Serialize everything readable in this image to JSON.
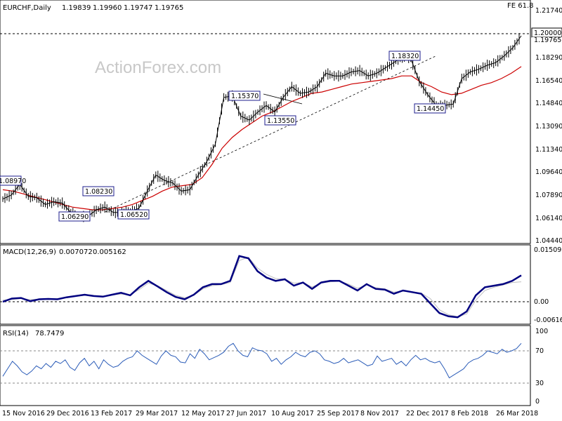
{
  "chart_data": [
    {
      "type": "line",
      "panel": "price",
      "header": {
        "symbol": "EURCHF,Daily",
        "ohlc": [
          "1.19839",
          "1.19960",
          "1.19747",
          "1.19765"
        ],
        "fe_label": "FE 61.8",
        "watermark": "ActionForex.com"
      },
      "x_tick_labels": [
        "15 Nov 2016",
        "29 Dec 2016",
        "13 Feb 2017",
        "29 Mar 2017",
        "12 May 2017",
        "27 Jun 2017",
        "10 Aug 2017",
        "25 Sep 2017",
        "8 Nov 2017",
        "22 Dec 2017",
        "8 Feb 2018",
        "26 Mar 2018"
      ],
      "y_tick_labels": [
        "1.21740",
        "1.18290",
        "1.16540",
        "1.14840",
        "1.13090",
        "1.11340",
        "1.09640",
        "1.07890",
        "1.06140",
        "1.04440"
      ],
      "ylim": [
        1.0444,
        1.2174
      ],
      "price_label": "1.20000",
      "last_price_label": "1.19765",
      "annotations": [
        "1.08970",
        "1.06290",
        "1.08230",
        "1.06520",
        "1.15370",
        "1.13550",
        "1.18320",
        "1.14450"
      ],
      "price_series": [
        1.076,
        1.079,
        1.087,
        1.078,
        1.077,
        1.072,
        1.074,
        1.073,
        1.066,
        1.063,
        1.063,
        1.068,
        1.07,
        1.066,
        1.066,
        1.067,
        1.069,
        1.082,
        1.094,
        1.09,
        1.088,
        1.082,
        1.083,
        1.094,
        1.104,
        1.117,
        1.152,
        1.153,
        1.138,
        1.135,
        1.141,
        1.146,
        1.141,
        1.152,
        1.16,
        1.155,
        1.156,
        1.16,
        1.17,
        1.168,
        1.168,
        1.171,
        1.172,
        1.168,
        1.17,
        1.174,
        1.178,
        1.182,
        1.181,
        1.164,
        1.154,
        1.146,
        1.146,
        1.147,
        1.166,
        1.171,
        1.173,
        1.176,
        1.178,
        1.183,
        1.189,
        1.198
      ],
      "ma_series": [
        1.083,
        1.082,
        1.08,
        1.078,
        1.076,
        1.074,
        1.072,
        1.07,
        1.069,
        1.068,
        1.068,
        1.069,
        1.07,
        1.072,
        1.075,
        1.078,
        1.082,
        1.085,
        1.086,
        1.087,
        1.092,
        1.102,
        1.114,
        1.122,
        1.128,
        1.133,
        1.138,
        1.141,
        1.145,
        1.149,
        1.152,
        1.155,
        1.156,
        1.158,
        1.16,
        1.162,
        1.163,
        1.164,
        1.165,
        1.166,
        1.168,
        1.168,
        1.163,
        1.16,
        1.156,
        1.154,
        1.155,
        1.158,
        1.161,
        1.163,
        1.166,
        1.17,
        1.175
      ]
    },
    {
      "type": "line",
      "panel": "macd",
      "header": {
        "title": "MACD(12,26,9)",
        "values": [
          "0.007072",
          "0.005162"
        ]
      },
      "y_tick_labels": [
        "0.015092",
        "0.00",
        "-0.006163"
      ],
      "ylim": [
        -0.0075,
        0.016
      ],
      "macd_series": [
        -0.001,
        0.0,
        0.0002,
        -0.0008,
        -0.0002,
        -0.0001,
        -0.0002,
        0.0004,
        0.0008,
        0.0012,
        0.0008,
        0.0006,
        0.0012,
        0.0018,
        0.001,
        0.0035,
        0.0055,
        0.0038,
        0.002,
        0.0005,
        -0.0002,
        0.0012,
        0.0035,
        0.0045,
        0.0045,
        0.0055,
        0.0132,
        0.0125,
        0.0085,
        0.0065,
        0.0055,
        0.006,
        0.004,
        0.005,
        0.003,
        0.005,
        0.0055,
        0.0055,
        0.004,
        0.0025,
        0.0045,
        0.003,
        0.0028,
        0.0015,
        0.0025,
        0.002,
        0.0015,
        -0.0015,
        -0.0045,
        -0.0055,
        -0.0058,
        -0.004,
        0.001,
        0.0035,
        0.004,
        0.0045,
        0.0055,
        0.0072
      ],
      "signal_series": [
        -0.0005,
        -0.0003,
        0.0,
        -0.0003,
        -0.0002,
        -0.0001,
        0.0,
        0.0004,
        0.0007,
        0.001,
        0.0009,
        0.0008,
        0.0011,
        0.0014,
        0.0012,
        0.0028,
        0.0048,
        0.004,
        0.0025,
        0.001,
        0.0003,
        0.001,
        0.003,
        0.004,
        0.0043,
        0.005,
        0.0118,
        0.0128,
        0.0095,
        0.0075,
        0.0062,
        0.006,
        0.0048,
        0.005,
        0.0036,
        0.0048,
        0.0052,
        0.0054,
        0.0045,
        0.0032,
        0.0042,
        0.0034,
        0.003,
        0.002,
        0.0023,
        0.0021,
        0.0017,
        0.0,
        -0.0035,
        -0.005,
        -0.0056,
        -0.0048,
        -0.0005,
        0.0025,
        0.0035,
        0.0042,
        0.005,
        0.0052
      ],
      "macd_color": "#000080",
      "signal_color": "#c0c0c0"
    },
    {
      "type": "line",
      "panel": "rsi",
      "header": {
        "title": "RSI(14)",
        "value": "78.7479"
      },
      "y_tick_labels": [
        "100",
        "70",
        "30",
        "0"
      ],
      "ylim": [
        0,
        100
      ],
      "levels": [
        70,
        30
      ],
      "rsi_series": [
        38,
        48,
        58,
        52,
        44,
        40,
        45,
        52,
        48,
        55,
        50,
        58,
        55,
        60,
        50,
        46,
        56,
        62,
        52,
        58,
        48,
        60,
        54,
        50,
        52,
        58,
        62,
        64,
        72,
        66,
        62,
        58,
        54,
        65,
        72,
        66,
        64,
        57,
        56,
        68,
        62,
        74,
        68,
        60,
        63,
        66,
        70,
        78,
        82,
        72,
        66,
        64,
        76,
        73,
        72,
        68,
        58,
        62,
        54,
        60,
        64,
        70,
        66,
        64,
        70,
        72,
        68,
        60,
        58,
        55,
        57,
        62,
        56,
        58,
        60,
        56,
        52,
        54,
        65,
        58,
        60,
        62,
        54,
        58,
        52,
        60,
        66,
        60,
        62,
        58,
        56,
        58,
        48,
        36,
        40,
        44,
        48,
        56,
        60,
        62,
        66,
        72,
        70,
        68,
        74,
        70,
        72,
        75,
        82
      ]
    }
  ],
  "colors": {
    "price": "#000000",
    "ma": "#cc0000",
    "grid_dash": "#888888",
    "annotation_border": "#1c1c8c",
    "axis": "#000000"
  }
}
